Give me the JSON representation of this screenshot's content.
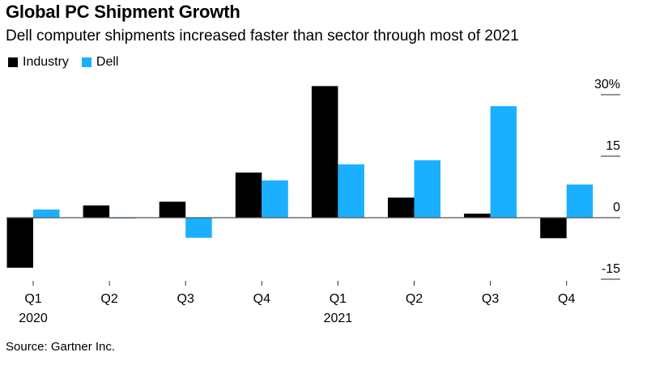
{
  "chart_data": {
    "type": "bar",
    "title": "Global PC Shipment Growth",
    "subtitle": "Dell computer shipments increased faster than sector through most of 2021",
    "categories": [
      "Q1",
      "Q2",
      "Q3",
      "Q4",
      "Q1",
      "Q2",
      "Q3",
      "Q4"
    ],
    "category_groups": [
      "2020",
      "",
      "",
      "",
      "2021",
      "",
      "",
      ""
    ],
    "series": [
      {
        "name": "Industry",
        "color": "#000000",
        "values": [
          -12.2,
          3.0,
          3.9,
          11.0,
          32.1,
          4.9,
          1.0,
          -5.0
        ]
      },
      {
        "name": "Dell",
        "color": "#1ab0ff",
        "values": [
          2.0,
          -0.2,
          -4.9,
          9.1,
          13.0,
          14.0,
          27.2,
          8.1
        ]
      }
    ],
    "xlabel": "",
    "ylabel": "",
    "y_ticks": [
      30,
      15,
      0,
      -15
    ],
    "y_tick_labels": [
      "30%",
      "15",
      "0",
      "-15"
    ],
    "ylim": [
      -15,
      30
    ],
    "grid": false,
    "legend_position": "top-left",
    "y_axis_position": "right",
    "source": "Source: Gartner Inc."
  }
}
